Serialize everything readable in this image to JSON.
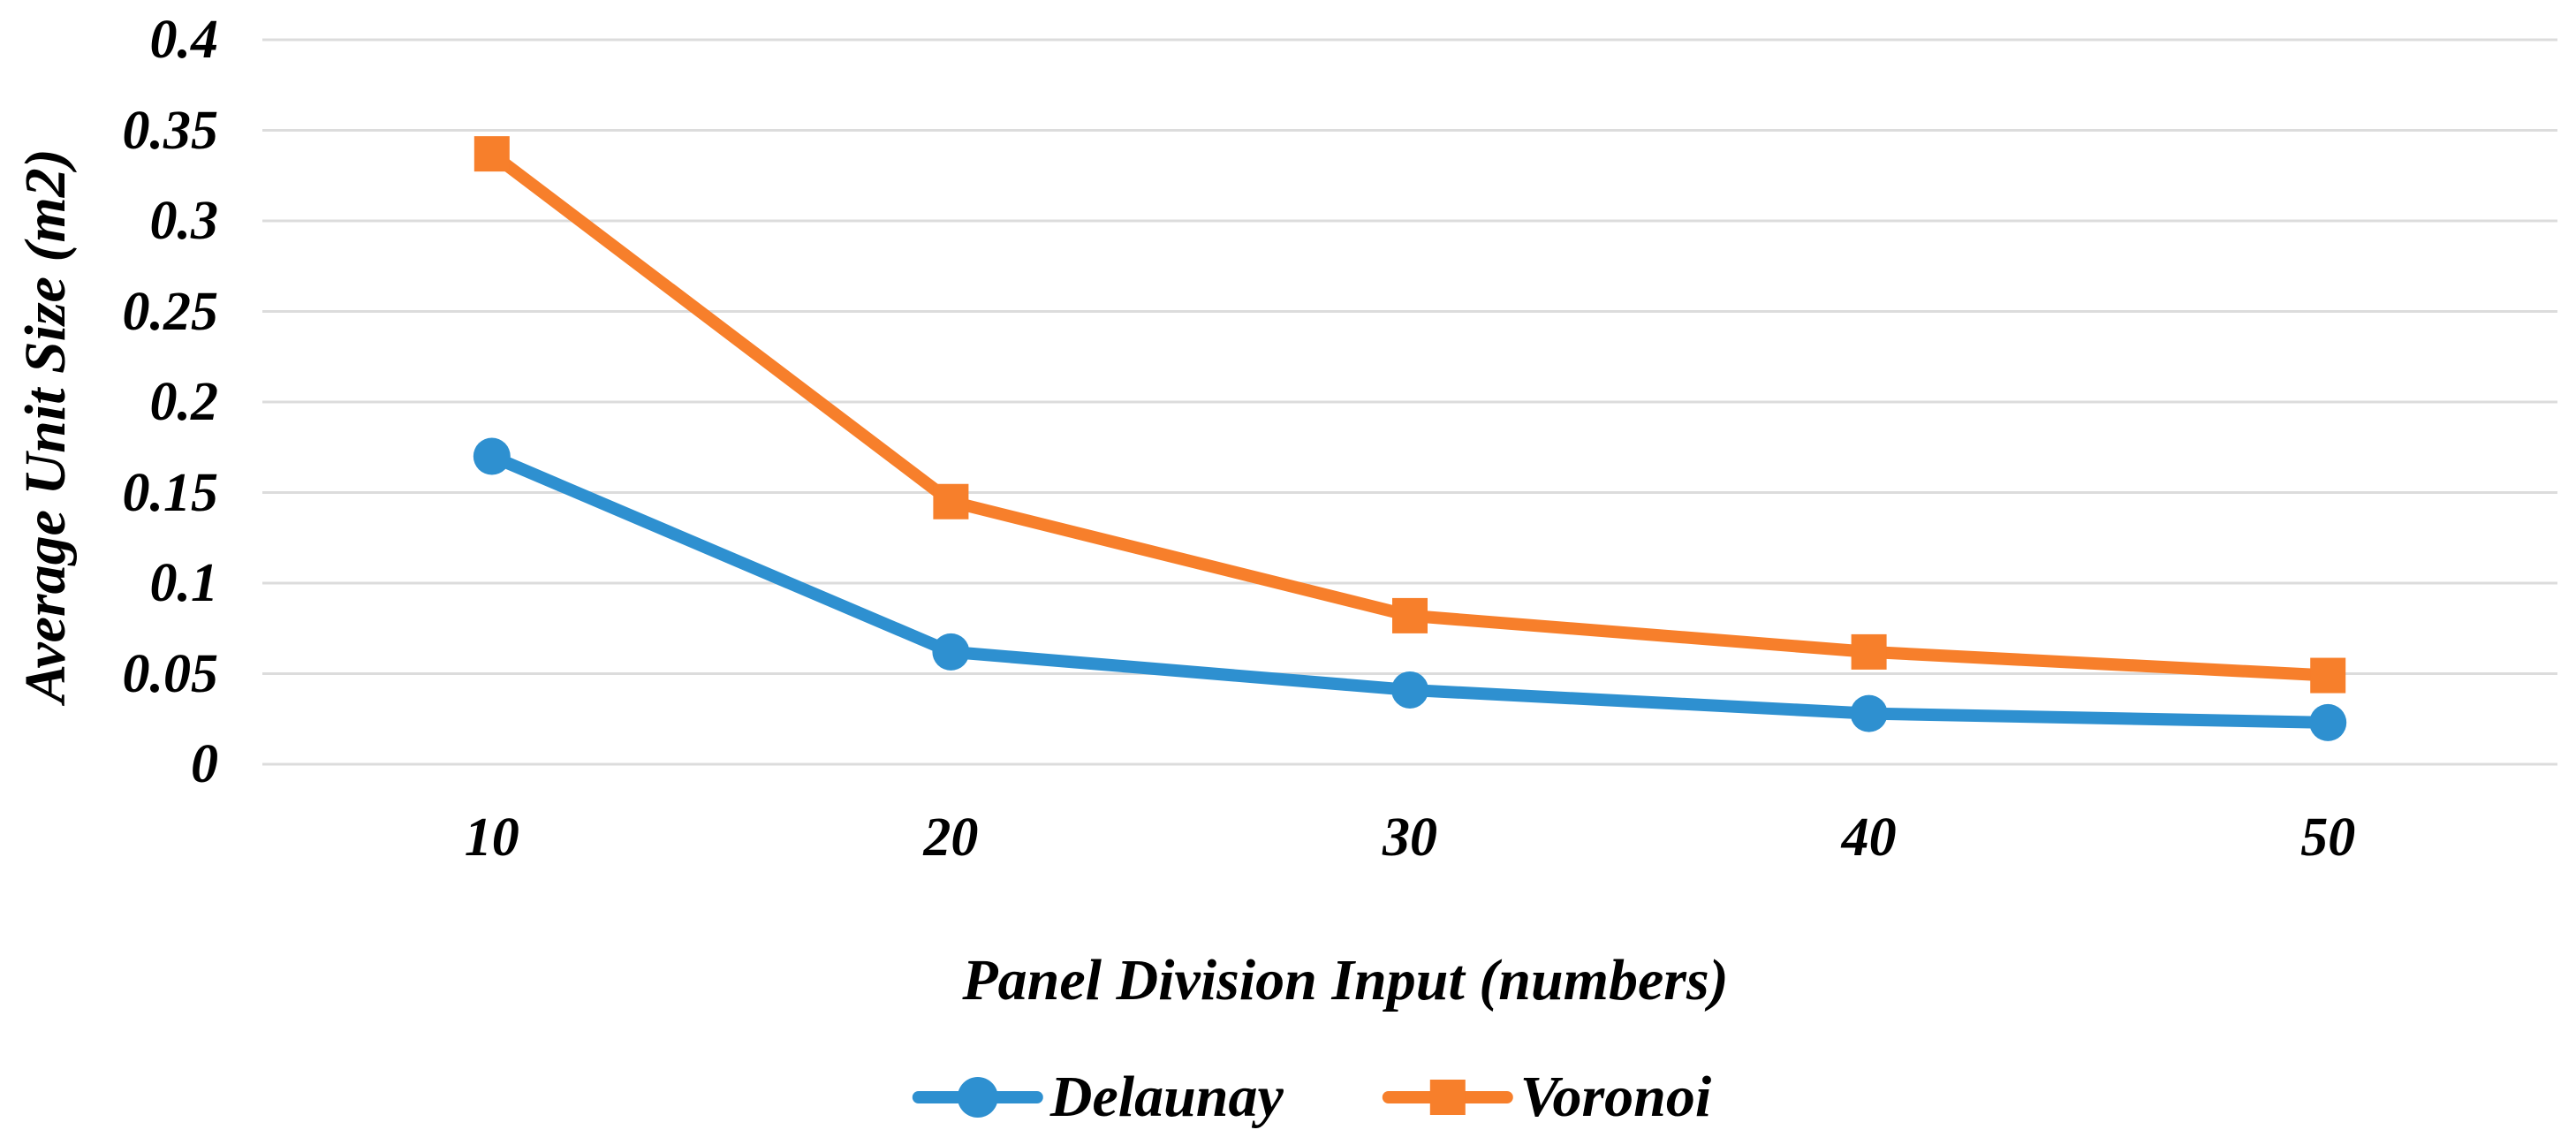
{
  "figure": {
    "background": "#FFFFFF",
    "text_color": "#000000"
  },
  "chart_data": {
    "type": "line",
    "title": "",
    "xlabel": "Panel Division Input (numbers)",
    "ylabel": "Average Unit Size (m2)",
    "categories": [
      "10",
      "20",
      "30",
      "40",
      "50"
    ],
    "series": [
      {
        "name": "Delaunay",
        "marker": "circle",
        "color": "#2E90D0",
        "values": [
          0.17,
          0.062,
          0.041,
          0.028,
          0.023
        ]
      },
      {
        "name": "Voronoi",
        "marker": "square",
        "color": "#F77F2B",
        "values": [
          0.337,
          0.145,
          0.082,
          0.062,
          0.049
        ]
      }
    ],
    "ylim": [
      0,
      0.4
    ],
    "ytick_step": 0.05,
    "ytick_labels": [
      "0.4",
      "0.35",
      "0.3",
      "0.25",
      "0.2",
      "0.15",
      "0.1",
      "0.05",
      "0"
    ],
    "grid": "horizontal",
    "gridline_color": "#DCDCDC",
    "legend_position": "bottom-center"
  }
}
